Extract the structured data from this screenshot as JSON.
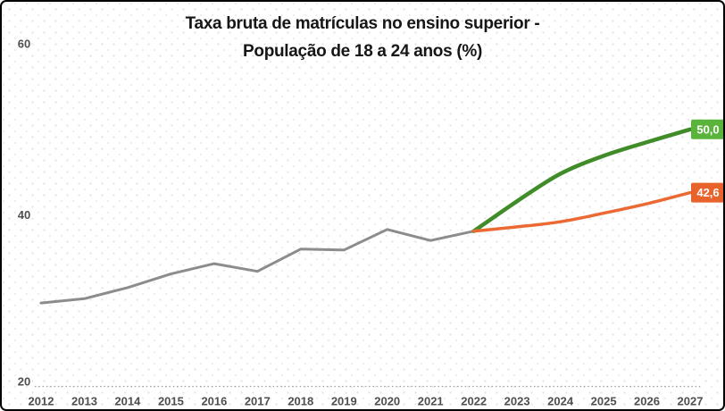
{
  "title": {
    "line1": "Taxa bruta de matrículas no ensino superior -",
    "line2": "População de 18 a 24 anos (%)"
  },
  "colors": {
    "frame_border": "#000000",
    "title_text": "#161616",
    "axis_text": "#4f4f4f",
    "baseline_dotted": "#9e9e9e",
    "historical_line": "#8c8c8c",
    "target_line": "#3f8c28",
    "target_label_box": "#5ab43c",
    "projection_line": "#eb6a33",
    "projection_label_box": "#e8622c",
    "callout_text": "#ffffff"
  },
  "chart_data": {
    "type": "line",
    "title": "Taxa bruta de matrículas no ensino superior - População de 18 a 24 anos (%)",
    "xlabel": "",
    "ylabel": "",
    "xlim": [
      2012,
      2027
    ],
    "ylim": [
      20,
      60
    ],
    "x_ticks": [
      2012,
      2013,
      2014,
      2015,
      2016,
      2017,
      2018,
      2019,
      2020,
      2021,
      2022,
      2023,
      2024,
      2025,
      2026,
      2027
    ],
    "y_ticks": [
      20,
      40,
      60
    ],
    "legend_position": "none",
    "grid": "single dotted horizontal baseline at y=20",
    "series": [
      {
        "id": "historical",
        "color": "#8c8c8c",
        "stroke_width": 3,
        "smooth": false,
        "x": [
          2012,
          2013,
          2014,
          2015,
          2016,
          2017,
          2018,
          2019,
          2020,
          2021,
          2022
        ],
        "values": [
          29.7,
          30.2,
          31.5,
          33.1,
          34.3,
          33.4,
          36.0,
          35.9,
          38.3,
          37.0,
          38.1
        ],
        "end_label": null
      },
      {
        "id": "target-projection",
        "color": "#3f8c28",
        "stroke_width": 4.5,
        "smooth": true,
        "x": [
          2022,
          2023,
          2024,
          2025,
          2026,
          2027
        ],
        "values": [
          38.1,
          41.6,
          44.8,
          46.9,
          48.5,
          50.0
        ],
        "end_label": "50,0",
        "end_label_box_color": "#5ab43c"
      },
      {
        "id": "trend-projection",
        "color": "#eb6a33",
        "stroke_width": 3.5,
        "smooth": true,
        "x": [
          2022,
          2023,
          2024,
          2025,
          2026,
          2027
        ],
        "values": [
          38.1,
          38.6,
          39.2,
          40.2,
          41.3,
          42.6
        ],
        "end_label": "42,6",
        "end_label_box_color": "#e8622c"
      }
    ]
  }
}
